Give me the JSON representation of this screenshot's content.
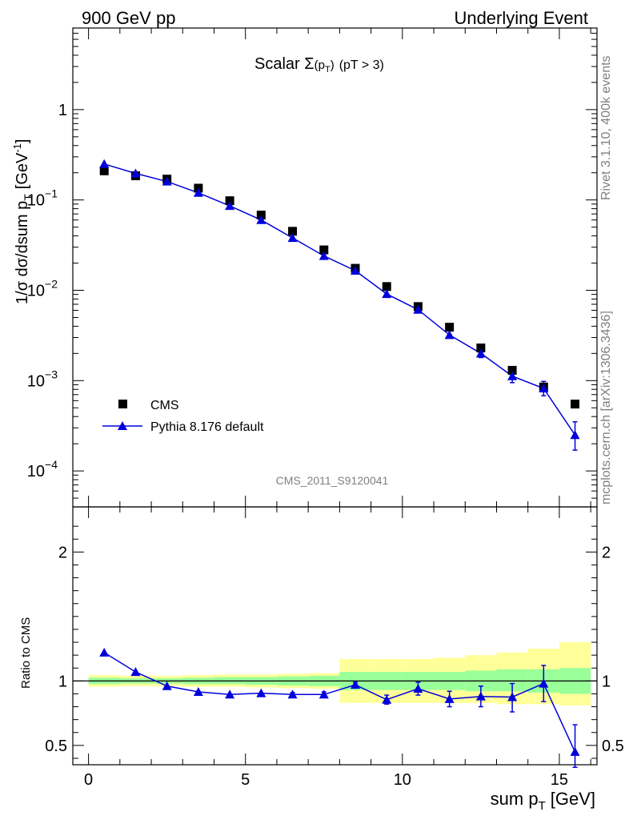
{
  "header": {
    "left": "900 GeV pp",
    "right": "Underlying Event"
  },
  "side": {
    "rivet": "Rivet 3.1.10,  400k events",
    "mcplots": "mcplots.cern.ch [arXiv:1306.3436]"
  },
  "plot_title": {
    "main": "Scalar Σ",
    "sub_p": "(p",
    "sub_T": "T",
    "sub_close": ")",
    "cut": "(pT >  3)"
  },
  "analysis_id": "CMS_2011_S9120041",
  "ylabel_main": {
    "text": "1/σ dσ/dsum p",
    "sub": "T",
    "unit": "[GeV",
    "sup": "-1",
    "close": "]"
  },
  "ylabel_ratio": "Ratio to CMS",
  "xlabel": {
    "text": "sum p",
    "sub": "T",
    "unit": "[GeV]"
  },
  "legend": {
    "data": "CMS",
    "mc": "Pythia 8.176 default"
  },
  "colors": {
    "mc": "#0000dd",
    "band_outer": "#ffff99",
    "band_inner": "#99ff99"
  },
  "chart_data": [
    {
      "type": "scatter",
      "scale": "log-y",
      "xlim": [
        -0.5,
        16.2
      ],
      "ylim": [
        4e-05,
        8
      ],
      "x_ticks": [
        0,
        5,
        10,
        15
      ],
      "y_ticks": [
        {
          "value": 1,
          "mant": "1",
          "exp": ""
        },
        {
          "value": 0.1,
          "mant": "10",
          "exp": "−1"
        },
        {
          "value": 0.01,
          "mant": "10",
          "exp": "−2"
        },
        {
          "value": 0.001,
          "mant": "10",
          "exp": "−3"
        },
        {
          "value": 0.0001,
          "mant": "10",
          "exp": "−4"
        }
      ],
      "series": [
        {
          "name": "CMS",
          "x": [
            0.5,
            1.5,
            2.5,
            3.5,
            4.5,
            5.5,
            6.5,
            7.5,
            8.5,
            9.5,
            10.5,
            11.5,
            12.5,
            13.5,
            14.5,
            15.5
          ],
          "y": [
            0.21,
            0.185,
            0.17,
            0.135,
            0.098,
            0.068,
            0.045,
            0.028,
            0.0175,
            0.011,
            0.0066,
            0.0039,
            0.0023,
            0.0013,
            0.00085,
            0.00055
          ]
        },
        {
          "name": "Pythia 8.176 default",
          "x": [
            0.5,
            1.5,
            2.5,
            3.5,
            4.5,
            5.5,
            6.5,
            7.5,
            8.5,
            9.5,
            10.5,
            11.5,
            12.5,
            13.5,
            14.5,
            15.5
          ],
          "y": [
            0.25,
            0.197,
            0.16,
            0.12,
            0.086,
            0.06,
            0.038,
            0.024,
            0.0165,
            0.0091,
            0.0061,
            0.0032,
            0.002,
            0.00112,
            0.00082,
            0.00025
          ],
          "err_lo": [
            0.25,
            0.197,
            0.16,
            0.12,
            0.086,
            0.06,
            0.038,
            0.024,
            0.0165,
            0.0091,
            0.0061,
            0.0031,
            0.0018,
            0.00095,
            0.00068,
            0.00017
          ],
          "err_hi": [
            0.25,
            0.197,
            0.16,
            0.12,
            0.086,
            0.06,
            0.038,
            0.024,
            0.0165,
            0.0091,
            0.0061,
            0.0033,
            0.0022,
            0.0013,
            0.00098,
            0.00035
          ]
        }
      ]
    },
    {
      "type": "scatter",
      "xlim": [
        -0.5,
        16.2
      ],
      "ylim": [
        0.35,
        2.35
      ],
      "x_ticks": [
        0,
        5,
        10,
        15
      ],
      "y_ticks": [
        0.5,
        1,
        2
      ],
      "reference_line": 1,
      "bands": {
        "edges": [
          0,
          1,
          2,
          3,
          4,
          5,
          6,
          7,
          8,
          9,
          10,
          11,
          12,
          13,
          14,
          15,
          16
        ],
        "outer_lo": [
          0.955,
          0.96,
          0.96,
          0.955,
          0.955,
          0.95,
          0.945,
          0.94,
          0.83,
          0.83,
          0.83,
          0.83,
          0.83,
          0.82,
          0.82,
          0.81
        ],
        "outer_hi": [
          1.045,
          1.04,
          1.04,
          1.045,
          1.05,
          1.05,
          1.055,
          1.06,
          1.17,
          1.17,
          1.17,
          1.18,
          1.2,
          1.22,
          1.25,
          1.3
        ],
        "inner_lo": [
          0.975,
          0.98,
          0.98,
          0.975,
          0.975,
          0.97,
          0.965,
          0.96,
          0.93,
          0.93,
          0.93,
          0.93,
          0.92,
          0.92,
          0.91,
          0.9
        ],
        "inner_hi": [
          1.025,
          1.02,
          1.02,
          1.025,
          1.03,
          1.03,
          1.035,
          1.04,
          1.07,
          1.07,
          1.07,
          1.07,
          1.08,
          1.09,
          1.09,
          1.1
        ]
      },
      "series": [
        {
          "name": "Pythia 8.176 default",
          "x": [
            0.5,
            1.5,
            2.5,
            3.5,
            4.5,
            5.5,
            6.5,
            7.5,
            8.5,
            9.5,
            10.5,
            11.5,
            12.5,
            13.5,
            14.5,
            15.5
          ],
          "y": [
            1.22,
            1.07,
            0.96,
            0.915,
            0.895,
            0.905,
            0.895,
            0.895,
            0.97,
            0.855,
            0.94,
            0.86,
            0.88,
            0.875,
            0.98,
            0.45
          ],
          "err_lo": [
            1.22,
            1.07,
            0.96,
            0.915,
            0.895,
            0.905,
            0.88,
            0.875,
            0.95,
            0.82,
            0.89,
            0.8,
            0.8,
            0.76,
            0.84,
            0.33
          ],
          "err_hi": [
            1.22,
            1.07,
            0.96,
            0.915,
            0.895,
            0.905,
            0.91,
            0.915,
            0.99,
            0.89,
            0.99,
            0.92,
            0.96,
            0.98,
            1.12,
            0.66
          ]
        }
      ]
    }
  ]
}
